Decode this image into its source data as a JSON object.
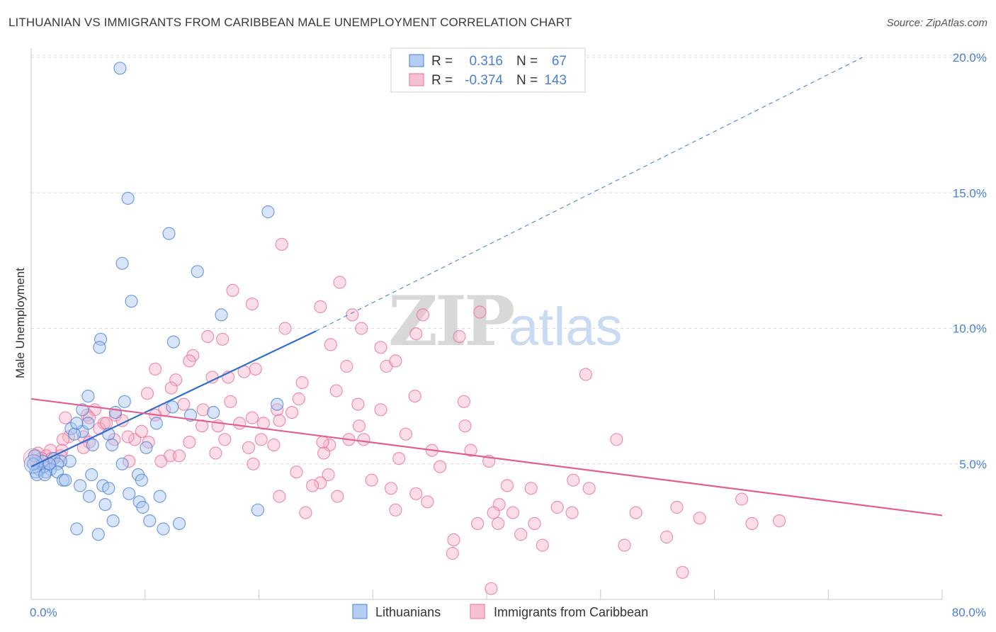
{
  "title": "LITHUANIAN VS IMMIGRANTS FROM CARIBBEAN MALE UNEMPLOYMENT CORRELATION CHART",
  "source": "Source: ZipAtlas.com",
  "watermark": {
    "zip": "ZIP",
    "atlas": "atlas"
  },
  "colors": {
    "blue": "#4a7fd4",
    "blue_fill": "#a9c6f0",
    "blue_line": "#2f6fd1",
    "pink": "#e86f9a",
    "pink_fill": "#f5b4c8",
    "pink_line": "#e0608d",
    "grid": "#dcdcdc",
    "axis_text": "#4a7fd4"
  },
  "legend_top": {
    "rows": [
      {
        "r_label": "R =",
        "r_value": "0.316",
        "n_label": "N =",
        "n_value": "67",
        "color": "blue"
      },
      {
        "r_label": "R =",
        "r_value": "-0.374",
        "n_label": "N =",
        "n_value": "143",
        "color": "pink"
      }
    ]
  },
  "chart_data": {
    "type": "scatter",
    "ylabel": "Male Unemployment",
    "xlim": [
      0,
      80
    ],
    "ylim": [
      0,
      20
    ],
    "x_tick_labels": [
      "0.0%",
      "80.0%"
    ],
    "y_ticks": [
      5,
      10,
      15,
      20
    ],
    "y_tick_labels": [
      "5.0%",
      "10.0%",
      "15.0%",
      "20.0%"
    ],
    "grid": true,
    "legend": "bottom-center",
    "series": [
      {
        "name": "Lithuanians",
        "color": "blue",
        "r": 0.316,
        "n": 67,
        "trend": {
          "x0": 0,
          "y0": 4.9,
          "x1": 25,
          "y1": 9.9,
          "dash_to_x": 73,
          "dash_to_y": 20.0
        },
        "points": [
          [
            7.8,
            19.6
          ],
          [
            8.5,
            14.8
          ],
          [
            20.8,
            14.3
          ],
          [
            12.1,
            13.5
          ],
          [
            8,
            12.4
          ],
          [
            14.6,
            12.1
          ],
          [
            8.8,
            11.0
          ],
          [
            16.7,
            10.5
          ],
          [
            6.1,
            9.6
          ],
          [
            6.0,
            9.3
          ],
          [
            12.5,
            9.5
          ],
          [
            5.0,
            7.5
          ],
          [
            4.5,
            7.0
          ],
          [
            8.2,
            7.3
          ],
          [
            7.4,
            6.9
          ],
          [
            12.4,
            7.1
          ],
          [
            21.6,
            7.2
          ],
          [
            14.0,
            6.8
          ],
          [
            16.0,
            6.9
          ],
          [
            3.5,
            6.3
          ],
          [
            4.5,
            6.2
          ],
          [
            3.8,
            6.1
          ],
          [
            5.0,
            6.5
          ],
          [
            4.0,
            6.5
          ],
          [
            6.8,
            6.1
          ],
          [
            11.0,
            6.5
          ],
          [
            5.4,
            5.7
          ],
          [
            7.1,
            5.7
          ],
          [
            10.1,
            5.6
          ],
          [
            3.4,
            5.1
          ],
          [
            2.6,
            5.1
          ],
          [
            2.0,
            5.2
          ],
          [
            2.3,
            5.0
          ],
          [
            1.7,
            4.8
          ],
          [
            1.3,
            4.7
          ],
          [
            2.3,
            4.7
          ],
          [
            1.1,
            4.9
          ],
          [
            0.7,
            4.8
          ],
          [
            1.0,
            5.1
          ],
          [
            0.3,
            5.3
          ],
          [
            0.4,
            4.7
          ],
          [
            0.5,
            4.6
          ],
          [
            1.2,
            4.6
          ],
          [
            2.8,
            4.4
          ],
          [
            3.0,
            4.4
          ],
          [
            8.0,
            5.0
          ],
          [
            5.3,
            4.6
          ],
          [
            9.4,
            4.6
          ],
          [
            9.7,
            4.4
          ],
          [
            6.3,
            4.2
          ],
          [
            6.8,
            4.1
          ],
          [
            4.3,
            4.2
          ],
          [
            8.6,
            3.9
          ],
          [
            11.3,
            3.8
          ],
          [
            5.1,
            3.8
          ],
          [
            9.5,
            3.6
          ],
          [
            6.5,
            3.5
          ],
          [
            9.8,
            3.4
          ],
          [
            19.9,
            3.3
          ],
          [
            7.2,
            2.9
          ],
          [
            10.4,
            2.9
          ],
          [
            4.0,
            2.6
          ],
          [
            11.6,
            2.6
          ],
          [
            13.0,
            2.8
          ],
          [
            5.9,
            2.4
          ],
          [
            0.2,
            5.0
          ],
          [
            1.6,
            5.0
          ]
        ]
      },
      {
        "name": "Immigrants from Caribbean",
        "color": "pink",
        "r": -0.374,
        "n": 143,
        "trend": {
          "x0": 0,
          "y0": 7.4,
          "x1": 80,
          "y1": 3.1
        },
        "points": [
          [
            22.0,
            13.1
          ],
          [
            17.7,
            11.4
          ],
          [
            19.4,
            10.9
          ],
          [
            27.1,
            11.7
          ],
          [
            25.4,
            10.8
          ],
          [
            28.2,
            10.5
          ],
          [
            34.4,
            10.5
          ],
          [
            39.4,
            10.6
          ],
          [
            22.3,
            10.0
          ],
          [
            15.5,
            9.7
          ],
          [
            16.8,
            9.6
          ],
          [
            29.0,
            10.0
          ],
          [
            33.8,
            9.8
          ],
          [
            37.6,
            9.7
          ],
          [
            26.3,
            9.4
          ],
          [
            30.7,
            9.3
          ],
          [
            14.2,
            9.0
          ],
          [
            13.9,
            8.8
          ],
          [
            19.7,
            8.5
          ],
          [
            31.2,
            8.6
          ],
          [
            32.0,
            8.8
          ],
          [
            27.7,
            8.6
          ],
          [
            48.7,
            8.3
          ],
          [
            10.9,
            8.5
          ],
          [
            12.7,
            8.1
          ],
          [
            15.9,
            8.2
          ],
          [
            17.3,
            8.2
          ],
          [
            18.7,
            8.4
          ],
          [
            23.8,
            8.0
          ],
          [
            12.3,
            7.8
          ],
          [
            10.2,
            7.6
          ],
          [
            26.8,
            7.7
          ],
          [
            33.7,
            7.5
          ],
          [
            38.0,
            7.3
          ],
          [
            17.5,
            7.3
          ],
          [
            23.5,
            7.4
          ],
          [
            28.7,
            7.2
          ],
          [
            30.7,
            7.0
          ],
          [
            13.4,
            7.2
          ],
          [
            11.7,
            7.0
          ],
          [
            15.1,
            7.0
          ],
          [
            21.6,
            7.0
          ],
          [
            22.9,
            6.9
          ],
          [
            5.6,
            7.0
          ],
          [
            4.9,
            6.8
          ],
          [
            3.0,
            6.7
          ],
          [
            7.4,
            6.8
          ],
          [
            10.9,
            6.8
          ],
          [
            19.4,
            6.7
          ],
          [
            21.8,
            6.6
          ],
          [
            18.3,
            6.5
          ],
          [
            16.4,
            6.4
          ],
          [
            20.4,
            6.5
          ],
          [
            15.0,
            6.4
          ],
          [
            28.8,
            6.4
          ],
          [
            38.1,
            6.4
          ],
          [
            5.1,
            6.7
          ],
          [
            6.4,
            6.5
          ],
          [
            8.0,
            6.6
          ],
          [
            6.0,
            6.3
          ],
          [
            4.6,
            6.0
          ],
          [
            3.3,
            6.0
          ],
          [
            2.8,
            5.9
          ],
          [
            5.1,
            5.8
          ],
          [
            7.3,
            5.9
          ],
          [
            9.1,
            5.9
          ],
          [
            10.3,
            5.8
          ],
          [
            13.9,
            5.8
          ],
          [
            8.5,
            6.0
          ],
          [
            17.0,
            5.9
          ],
          [
            20.2,
            5.9
          ],
          [
            27.9,
            5.9
          ],
          [
            29.2,
            5.9
          ],
          [
            32.9,
            6.1
          ],
          [
            51.4,
            5.9
          ],
          [
            21.3,
            5.7
          ],
          [
            26.2,
            5.7
          ],
          [
            19.1,
            5.6
          ],
          [
            25.6,
            5.8
          ],
          [
            4.6,
            5.6
          ],
          [
            2.7,
            5.5
          ],
          [
            1.7,
            5.5
          ],
          [
            0.6,
            5.4
          ],
          [
            1.3,
            5.3
          ],
          [
            1.8,
            5.2
          ],
          [
            0.9,
            5.2
          ],
          [
            0.4,
            5.1
          ],
          [
            1.6,
            5.0
          ],
          [
            2.6,
            5.3
          ],
          [
            12.2,
            5.3
          ],
          [
            13.0,
            5.3
          ],
          [
            16.2,
            5.4
          ],
          [
            25.7,
            5.4
          ],
          [
            35.2,
            5.5
          ],
          [
            38.6,
            5.5
          ],
          [
            11.4,
            5.1
          ],
          [
            19.5,
            5.0
          ],
          [
            32.3,
            5.2
          ],
          [
            35.9,
            4.9
          ],
          [
            40.2,
            5.1
          ],
          [
            8.6,
            5.1
          ],
          [
            23.3,
            4.7
          ],
          [
            26.1,
            4.6
          ],
          [
            29.9,
            4.4
          ],
          [
            25.4,
            4.3
          ],
          [
            24.7,
            4.2
          ],
          [
            47.6,
            4.4
          ],
          [
            41.8,
            4.2
          ],
          [
            49.0,
            4.1
          ],
          [
            43.9,
            4.1
          ],
          [
            31.6,
            4.1
          ],
          [
            33.8,
            3.9
          ],
          [
            21.8,
            3.8
          ],
          [
            26.9,
            3.8
          ],
          [
            34.8,
            3.6
          ],
          [
            62.4,
            3.7
          ],
          [
            41.1,
            3.5
          ],
          [
            46.2,
            3.4
          ],
          [
            47.5,
            3.2
          ],
          [
            53.1,
            3.2
          ],
          [
            56.7,
            3.4
          ],
          [
            39.2,
            2.8
          ],
          [
            41.0,
            2.8
          ],
          [
            44.2,
            2.8
          ],
          [
            40.6,
            3.2
          ],
          [
            32.0,
            3.3
          ],
          [
            24.1,
            3.2
          ],
          [
            42.3,
            3.2
          ],
          [
            58.7,
            3.0
          ],
          [
            63.3,
            2.8
          ],
          [
            65.7,
            2.9
          ],
          [
            43.0,
            2.4
          ],
          [
            44.9,
            2.0
          ],
          [
            52.1,
            2.0
          ],
          [
            55.8,
            2.3
          ],
          [
            37.1,
            2.2
          ],
          [
            37.0,
            1.7
          ],
          [
            57.2,
            1.0
          ],
          [
            40.4,
            0.4
          ],
          [
            6.6,
            6.5
          ],
          [
            9.7,
            6.2
          ]
        ]
      }
    ]
  }
}
